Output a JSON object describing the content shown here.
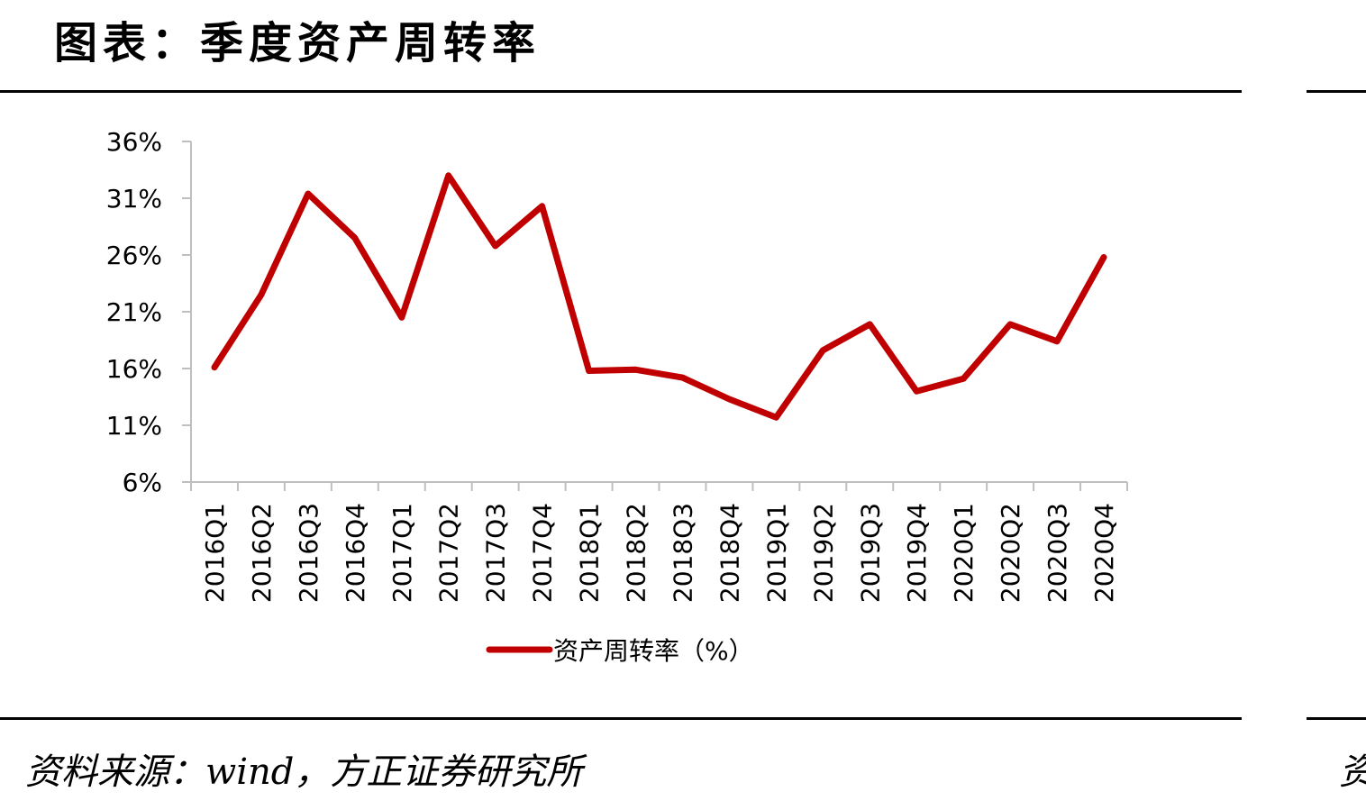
{
  "header": {
    "title": "图表：季度资产周转率"
  },
  "footer": {
    "source": "资料来源：wind，方正证券研究所",
    "source_right_fragment": "资"
  },
  "colors": {
    "series": "#c00000",
    "axis": "#bfbfbf"
  },
  "chart_data": {
    "type": "line",
    "title": "",
    "xlabel": "",
    "ylabel": "",
    "categories": [
      "2016Q1",
      "2016Q2",
      "2016Q3",
      "2016Q4",
      "2017Q1",
      "2017Q2",
      "2017Q3",
      "2017Q4",
      "2018Q1",
      "2018Q2",
      "2018Q3",
      "2018Q4",
      "2019Q1",
      "2019Q2",
      "2019Q3",
      "2019Q4",
      "2020Q1",
      "2020Q2",
      "2020Q3",
      "2020Q4"
    ],
    "series": [
      {
        "name": "资产周转率（%）",
        "values": [
          16.1,
          22.5,
          31.4,
          27.5,
          20.5,
          33.0,
          26.8,
          30.3,
          15.8,
          15.9,
          15.2,
          13.3,
          11.7,
          17.6,
          19.9,
          14.0,
          15.1,
          19.9,
          18.4,
          25.8
        ]
      }
    ],
    "ylim": [
      6,
      36
    ],
    "yticks": [
      6,
      11,
      16,
      21,
      26,
      31,
      36
    ],
    "ytick_labels": [
      "6%",
      "11%",
      "16%",
      "21%",
      "26%",
      "31%",
      "36%"
    ],
    "grid": false,
    "legend": "bottom-center"
  }
}
